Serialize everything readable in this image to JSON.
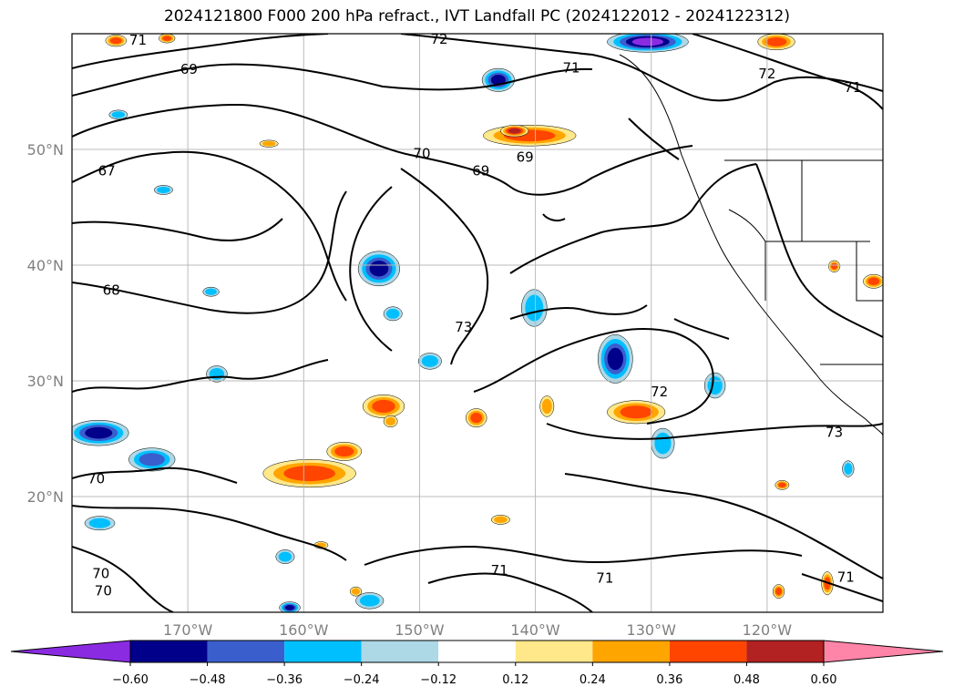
{
  "chart_data": {
    "type": "heatmap",
    "title": "2024121800 F000 200 hPa refract., IVT Landfall PC (2024122012 - 2024122312)",
    "projection": "lat-lon map",
    "lon_range": [
      -180,
      -110
    ],
    "lat_range": [
      10,
      60
    ],
    "x_ticks": [
      {
        "value": -170,
        "label": "170°W"
      },
      {
        "value": -160,
        "label": "160°W"
      },
      {
        "value": -150,
        "label": "150°W"
      },
      {
        "value": -140,
        "label": "140°W"
      },
      {
        "value": -130,
        "label": "130°W"
      },
      {
        "value": -120,
        "label": "120°W"
      }
    ],
    "y_ticks": [
      {
        "value": 20,
        "label": "20°N"
      },
      {
        "value": 30,
        "label": "30°N"
      },
      {
        "value": 40,
        "label": "40°N"
      },
      {
        "value": 50,
        "label": "50°N"
      }
    ],
    "grid": true,
    "contour_labels": [
      {
        "text": "71",
        "lon": -174.3,
        "lat": 59.4
      },
      {
        "text": "72",
        "lon": -148.3,
        "lat": 59.5
      },
      {
        "text": "69",
        "lon": -169.9,
        "lat": 56.9
      },
      {
        "text": "71",
        "lon": -136.9,
        "lat": 57.0
      },
      {
        "text": "72",
        "lon": -120.0,
        "lat": 56.5
      },
      {
        "text": "71",
        "lon": -112.6,
        "lat": 55.3
      },
      {
        "text": "70",
        "lon": -149.8,
        "lat": 49.6
      },
      {
        "text": "69",
        "lon": -144.7,
        "lat": 48.1
      },
      {
        "text": "69",
        "lon": -140.9,
        "lat": 49.3
      },
      {
        "text": "67",
        "lon": -177.0,
        "lat": 48.1
      },
      {
        "text": "68",
        "lon": -176.6,
        "lat": 37.8
      },
      {
        "text": "73",
        "lon": -146.2,
        "lat": 34.6
      },
      {
        "text": "72",
        "lon": -129.3,
        "lat": 29.0
      },
      {
        "text": "73",
        "lon": -114.2,
        "lat": 25.5
      },
      {
        "text": "70",
        "lon": -177.9,
        "lat": 21.5
      },
      {
        "text": "71",
        "lon": -143.1,
        "lat": 13.6
      },
      {
        "text": "71",
        "lon": -134.0,
        "lat": 12.9
      },
      {
        "text": "71",
        "lon": -113.2,
        "lat": 13.0
      },
      {
        "text": "70",
        "lon": -177.5,
        "lat": 13.3
      },
      {
        "text": "70",
        "lon": -177.3,
        "lat": 11.8
      }
    ],
    "anomaly_blobs": [
      {
        "lon": -177.7,
        "lat": 25.5,
        "rlon": 2.6,
        "rlat": 1.1,
        "value": -0.5
      },
      {
        "lon": -173.1,
        "lat": 23.2,
        "rlon": 2.0,
        "rlat": 1.0,
        "value": -0.4
      },
      {
        "lon": -168.0,
        "lat": 37.7,
        "rlon": 0.7,
        "rlat": 0.4,
        "value": -0.3
      },
      {
        "lon": -172.1,
        "lat": 46.5,
        "rlon": 0.8,
        "rlat": 0.4,
        "value": -0.3
      },
      {
        "lon": -167.5,
        "lat": 30.6,
        "rlon": 0.9,
        "rlat": 0.7,
        "value": -0.3
      },
      {
        "lon": -153.5,
        "lat": 39.7,
        "rlon": 1.8,
        "rlat": 1.5,
        "value": -0.55
      },
      {
        "lon": -152.3,
        "lat": 35.8,
        "rlon": 0.8,
        "rlat": 0.6,
        "value": -0.3
      },
      {
        "lon": -149.1,
        "lat": 31.7,
        "rlon": 1.0,
        "rlat": 0.7,
        "value": -0.35
      },
      {
        "lon": -140.1,
        "lat": 36.3,
        "rlon": 1.1,
        "rlat": 1.6,
        "value": -0.35
      },
      {
        "lon": -143.2,
        "lat": 56.0,
        "rlon": 1.4,
        "rlat": 1.0,
        "value": -0.5
      },
      {
        "lon": -130.3,
        "lat": 59.3,
        "rlon": 3.5,
        "rlat": 0.9,
        "value": -0.6
      },
      {
        "lon": -133.1,
        "lat": 31.9,
        "rlon": 1.5,
        "rlat": 2.1,
        "value": -0.55
      },
      {
        "lon": -124.5,
        "lat": 29.6,
        "rlon": 0.9,
        "rlat": 1.1,
        "value": -0.35
      },
      {
        "lon": -129.0,
        "lat": 24.6,
        "rlon": 1.0,
        "rlat": 1.3,
        "value": -0.3
      },
      {
        "lon": -177.6,
        "lat": 17.7,
        "rlon": 1.3,
        "rlat": 0.6,
        "value": -0.3
      },
      {
        "lon": -161.6,
        "lat": 14.8,
        "rlon": 0.8,
        "rlat": 0.6,
        "value": -0.35
      },
      {
        "lon": -154.3,
        "lat": 11.0,
        "rlon": 1.2,
        "rlat": 0.7,
        "value": -0.3
      },
      {
        "lon": -176.0,
        "lat": 53.0,
        "rlon": 0.8,
        "rlat": 0.4,
        "value": -0.3
      },
      {
        "lon": -161.2,
        "lat": 10.4,
        "rlon": 0.9,
        "rlat": 0.5,
        "value": -0.5
      },
      {
        "lon": -113.0,
        "lat": 22.4,
        "rlon": 0.5,
        "rlat": 0.7,
        "value": -0.3
      },
      {
        "lon": -159.5,
        "lat": 22.0,
        "rlon": 4.0,
        "rlat": 1.2,
        "value": 0.45
      },
      {
        "lon": -153.1,
        "lat": 27.8,
        "rlon": 1.8,
        "rlat": 1.0,
        "value": 0.45
      },
      {
        "lon": -156.5,
        "lat": 23.9,
        "rlon": 1.5,
        "rlat": 0.8,
        "value": 0.4
      },
      {
        "lon": -145.1,
        "lat": 26.8,
        "rlon": 0.9,
        "rlat": 0.8,
        "value": 0.45
      },
      {
        "lon": -140.5,
        "lat": 51.2,
        "rlon": 4.0,
        "rlat": 0.9,
        "value": 0.42
      },
      {
        "lon": -131.3,
        "lat": 27.3,
        "rlon": 2.5,
        "rlat": 1.0,
        "value": 0.45
      },
      {
        "lon": -139.0,
        "lat": 27.8,
        "rlon": 0.6,
        "rlat": 0.9,
        "value": 0.35
      },
      {
        "lon": -163.0,
        "lat": 50.5,
        "rlon": 0.8,
        "rlat": 0.3,
        "value": 0.3
      },
      {
        "lon": -176.2,
        "lat": 59.4,
        "rlon": 0.9,
        "rlat": 0.5,
        "value": 0.45
      },
      {
        "lon": -171.8,
        "lat": 59.6,
        "rlon": 0.7,
        "rlat": 0.4,
        "value": 0.4
      },
      {
        "lon": -119.2,
        "lat": 59.3,
        "rlon": 1.6,
        "rlat": 0.7,
        "value": 0.45
      },
      {
        "lon": -110.8,
        "lat": 38.6,
        "rlon": 0.9,
        "rlat": 0.6,
        "value": 0.45
      },
      {
        "lon": -114.2,
        "lat": 39.9,
        "rlon": 0.5,
        "rlat": 0.5,
        "value": 0.38
      },
      {
        "lon": -118.7,
        "lat": 21.0,
        "rlon": 0.6,
        "rlat": 0.4,
        "value": 0.4
      },
      {
        "lon": -114.8,
        "lat": 12.5,
        "rlon": 0.5,
        "rlat": 1.0,
        "value": 0.42
      },
      {
        "lon": -119.0,
        "lat": 11.8,
        "rlon": 0.5,
        "rlat": 0.6,
        "value": 0.38
      },
      {
        "lon": -143.0,
        "lat": 18.0,
        "rlon": 0.8,
        "rlat": 0.4,
        "value": 0.3
      },
      {
        "lon": -158.5,
        "lat": 15.8,
        "rlon": 0.6,
        "rlat": 0.3,
        "value": 0.3
      },
      {
        "lon": -152.5,
        "lat": 26.5,
        "rlon": 0.6,
        "rlat": 0.5,
        "value": 0.35
      },
      {
        "lon": -155.5,
        "lat": 11.8,
        "rlon": 0.5,
        "rlat": 0.4,
        "value": 0.3
      },
      {
        "lon": -141.8,
        "lat": 51.6,
        "rlon": 1.2,
        "rlat": 0.5,
        "value": 0.5
      }
    ],
    "colorbar": {
      "levels": [
        -0.6,
        -0.48,
        -0.36,
        -0.24,
        -0.12,
        0.12,
        0.24,
        0.36,
        0.48,
        0.6
      ],
      "tick_labels": [
        "−0.60",
        "−0.48",
        "−0.36",
        "−0.24",
        "−0.12",
        "0.12",
        "0.24",
        "0.36",
        "0.48",
        "0.60"
      ],
      "colors": [
        "#8a2be2",
        "#00008b",
        "#3a5fcd",
        "#00bfff",
        "#add8e6",
        "#ffffff",
        "#ffe88a",
        "#ffa500",
        "#ff4500",
        "#b22222",
        "#ff85a8"
      ],
      "extend": "both"
    }
  }
}
